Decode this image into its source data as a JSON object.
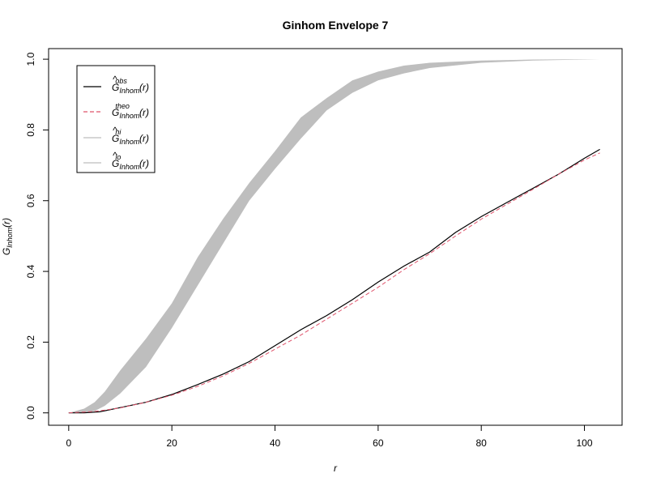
{
  "chart_data": {
    "type": "line",
    "title": "Ginhom Envelope 7",
    "xlabel": "r",
    "ylabel": {
      "base": "G",
      "sub": "Inhom",
      "arg": "(r)"
    },
    "xlim": [
      -3.9,
      107.3
    ],
    "ylim": [
      -0.035,
      1.03
    ],
    "x_ticks": [
      0,
      20,
      40,
      60,
      80,
      100
    ],
    "y_ticks": [
      0.0,
      0.2,
      0.4,
      0.6,
      0.8,
      1.0
    ],
    "x_tick_labels": [
      "0",
      "20",
      "40",
      "60",
      "80",
      "100"
    ],
    "y_tick_labels": [
      "0.0",
      "0.2",
      "0.4",
      "0.6",
      "0.8",
      "1.0"
    ],
    "grid": false,
    "legend_position": "top-left",
    "legend": [
      {
        "key": "obs",
        "hat": true,
        "base": "G",
        "sub": "Inhom",
        "sup": "obs",
        "arg": "(r)",
        "color": "#000000",
        "dash": "solid"
      },
      {
        "key": "theo",
        "hat": false,
        "base": "G",
        "sub": "Inhom",
        "sup": "theo",
        "arg": "(r)",
        "color": "#DF536B",
        "dash": "dashed"
      },
      {
        "key": "hi",
        "hat": true,
        "base": "G",
        "sub": "Inhom",
        "sup": "hi",
        "arg": "(r)",
        "color": "#BEBEBE",
        "dash": "solid"
      },
      {
        "key": "lo",
        "hat": true,
        "base": "G",
        "sub": "Inhom",
        "sup": "lo",
        "arg": "(r)",
        "color": "#BEBEBE",
        "dash": "solid"
      }
    ],
    "envelope_color": "#BEBEBE",
    "envelope_hi": {
      "x": [
        0,
        3,
        5,
        7,
        10,
        15,
        20,
        25,
        30,
        35,
        40,
        45,
        50,
        55,
        60,
        65,
        70,
        80,
        90,
        100,
        103
      ],
      "y": [
        0.0,
        0.012,
        0.03,
        0.06,
        0.12,
        0.21,
        0.31,
        0.44,
        0.55,
        0.65,
        0.74,
        0.835,
        0.89,
        0.94,
        0.965,
        0.982,
        0.99,
        0.996,
        0.999,
        1.0,
        1.0
      ]
    },
    "envelope_lo": {
      "x": [
        0,
        3,
        5,
        7,
        10,
        15,
        20,
        25,
        30,
        35,
        40,
        45,
        50,
        55,
        60,
        65,
        70,
        80,
        90,
        100,
        103
      ],
      "y": [
        0.0,
        0.0,
        0.005,
        0.02,
        0.055,
        0.13,
        0.24,
        0.36,
        0.48,
        0.6,
        0.69,
        0.775,
        0.855,
        0.905,
        0.94,
        0.96,
        0.975,
        0.99,
        0.996,
        0.999,
        1.0
      ]
    },
    "series": [
      {
        "key": "obs",
        "color": "#000000",
        "dash": "solid",
        "x": [
          0,
          3,
          6,
          10,
          15,
          20,
          25,
          30,
          35,
          40,
          45,
          50,
          55,
          60,
          65,
          70,
          75,
          80,
          85,
          90,
          95,
          100,
          103
        ],
        "y": [
          0.0,
          0.0,
          0.003,
          0.015,
          0.03,
          0.052,
          0.08,
          0.11,
          0.145,
          0.19,
          0.235,
          0.275,
          0.32,
          0.37,
          0.415,
          0.455,
          0.51,
          0.555,
          0.595,
          0.635,
          0.675,
          0.72,
          0.745
        ]
      },
      {
        "key": "theo",
        "color": "#DF536B",
        "dash": "dashed",
        "x": [
          0,
          5,
          10,
          15,
          20,
          25,
          30,
          35,
          40,
          45,
          50,
          55,
          60,
          65,
          70,
          75,
          80,
          85,
          90,
          95,
          100,
          103
        ],
        "y": [
          0.0,
          0.004,
          0.014,
          0.03,
          0.05,
          0.075,
          0.105,
          0.14,
          0.18,
          0.22,
          0.265,
          0.31,
          0.355,
          0.405,
          0.45,
          0.5,
          0.548,
          0.59,
          0.632,
          0.675,
          0.715,
          0.735
        ]
      }
    ]
  }
}
